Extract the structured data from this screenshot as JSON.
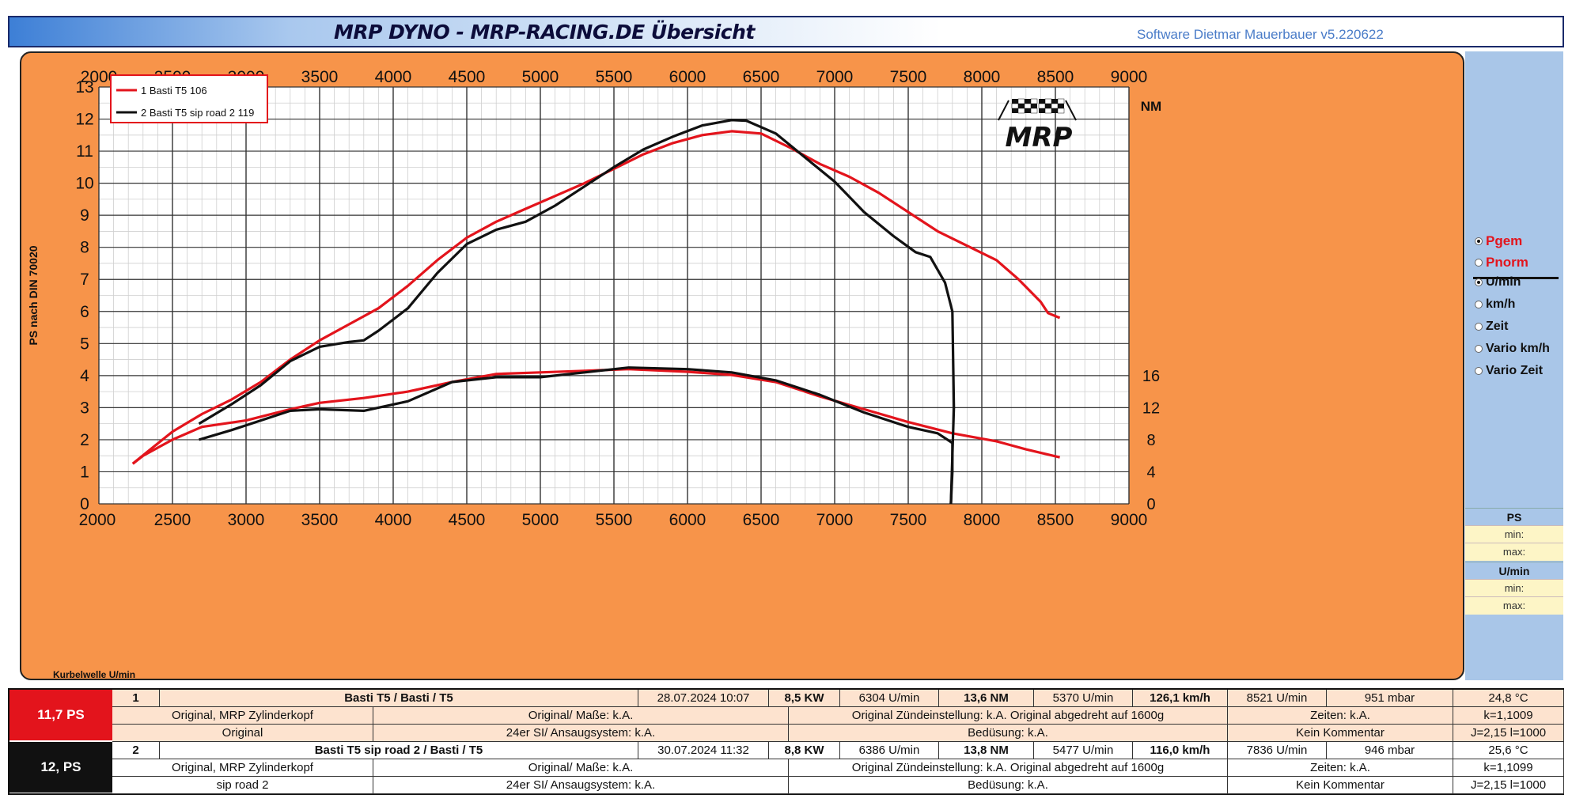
{
  "header": {
    "title": "MRP DYNO - MRP-RACING.DE  Übersicht",
    "software": "Software Dietmar Mauerbauer v5.220622"
  },
  "logo_text": "MRP",
  "chart_data": {
    "type": "line",
    "xlabel": "Kurbelwelle U/min",
    "ylabel": "PS nach DIN 70020",
    "y2label": "NM",
    "xlim": [
      2000,
      9000
    ],
    "ylim": [
      0,
      13
    ],
    "y2lim": [
      0,
      16
    ],
    "x_ticks": [
      "2000",
      "2500",
      "3000",
      "3500",
      "4000",
      "4500",
      "5000",
      "5500",
      "6000",
      "6500",
      "7000",
      "7500",
      "8000",
      "8500",
      "9000"
    ],
    "y_ticks": [
      "0",
      "1",
      "2",
      "3",
      "4",
      "5",
      "6",
      "7",
      "8",
      "9",
      "10",
      "11",
      "12",
      "13"
    ],
    "y2_ticks": [
      "0",
      "4",
      "8",
      "12",
      "16"
    ],
    "grid": true,
    "legend_position": "top-left",
    "series": [
      {
        "name": "1  Basti T5 106",
        "color": "#e3141c",
        "power_ps": [
          [
            2230,
            1.25
          ],
          [
            2350,
            1.7
          ],
          [
            2500,
            2.25
          ],
          [
            2700,
            2.8
          ],
          [
            2900,
            3.25
          ],
          [
            3100,
            3.8
          ],
          [
            3300,
            4.5
          ],
          [
            3500,
            5.1
          ],
          [
            3700,
            5.6
          ],
          [
            3900,
            6.1
          ],
          [
            4100,
            6.8
          ],
          [
            4300,
            7.6
          ],
          [
            4500,
            8.3
          ],
          [
            4700,
            8.8
          ],
          [
            4900,
            9.2
          ],
          [
            5100,
            9.6
          ],
          [
            5300,
            10.0
          ],
          [
            5500,
            10.45
          ],
          [
            5700,
            10.9
          ],
          [
            5900,
            11.25
          ],
          [
            6100,
            11.5
          ],
          [
            6300,
            11.62
          ],
          [
            6500,
            11.55
          ],
          [
            6700,
            11.1
          ],
          [
            6900,
            10.6
          ],
          [
            7100,
            10.2
          ],
          [
            7300,
            9.7
          ],
          [
            7500,
            9.1
          ],
          [
            7700,
            8.5
          ],
          [
            7900,
            8.05
          ],
          [
            8100,
            7.6
          ],
          [
            8250,
            7.0
          ],
          [
            8400,
            6.3
          ],
          [
            8450,
            5.95
          ],
          [
            8530,
            5.8
          ]
        ],
        "torque_nm": [
          [
            2230,
            1.25
          ],
          [
            2300,
            1.5
          ],
          [
            2500,
            2.0
          ],
          [
            2700,
            2.4
          ],
          [
            3000,
            2.6
          ],
          [
            3300,
            2.95
          ],
          [
            3500,
            3.15
          ],
          [
            3800,
            3.3
          ],
          [
            4100,
            3.5
          ],
          [
            4400,
            3.8
          ],
          [
            4700,
            4.05
          ],
          [
            5000,
            4.1
          ],
          [
            5300,
            4.15
          ],
          [
            5600,
            4.2
          ],
          [
            6000,
            4.12
          ],
          [
            6300,
            4.02
          ],
          [
            6600,
            3.8
          ],
          [
            6900,
            3.35
          ],
          [
            7200,
            2.95
          ],
          [
            7500,
            2.55
          ],
          [
            7800,
            2.2
          ],
          [
            8100,
            1.95
          ],
          [
            8300,
            1.7
          ],
          [
            8530,
            1.45
          ]
        ]
      },
      {
        "name": "2  Basti T5 sip road 2 119",
        "color": "#111111",
        "power_ps": [
          [
            2680,
            2.5
          ],
          [
            2900,
            3.1
          ],
          [
            3100,
            3.7
          ],
          [
            3300,
            4.45
          ],
          [
            3500,
            4.9
          ],
          [
            3700,
            5.05
          ],
          [
            3800,
            5.1
          ],
          [
            3900,
            5.4
          ],
          [
            4100,
            6.1
          ],
          [
            4300,
            7.2
          ],
          [
            4500,
            8.1
          ],
          [
            4700,
            8.55
          ],
          [
            4900,
            8.8
          ],
          [
            5100,
            9.3
          ],
          [
            5300,
            9.9
          ],
          [
            5500,
            10.5
          ],
          [
            5700,
            11.05
          ],
          [
            5900,
            11.45
          ],
          [
            6100,
            11.8
          ],
          [
            6300,
            11.97
          ],
          [
            6400,
            11.95
          ],
          [
            6600,
            11.55
          ],
          [
            6800,
            10.8
          ],
          [
            7000,
            10.05
          ],
          [
            7200,
            9.1
          ],
          [
            7400,
            8.35
          ],
          [
            7550,
            7.85
          ],
          [
            7650,
            7.7
          ],
          [
            7750,
            6.9
          ],
          [
            7800,
            6.0
          ],
          [
            7810,
            3.0
          ],
          [
            7790,
            0
          ]
        ],
        "torque_nm": [
          [
            2680,
            2.0
          ],
          [
            2900,
            2.3
          ],
          [
            3100,
            2.6
          ],
          [
            3300,
            2.9
          ],
          [
            3500,
            2.95
          ],
          [
            3800,
            2.9
          ],
          [
            4100,
            3.2
          ],
          [
            4400,
            3.8
          ],
          [
            4700,
            3.95
          ],
          [
            5000,
            3.95
          ],
          [
            5300,
            4.1
          ],
          [
            5600,
            4.25
          ],
          [
            6000,
            4.2
          ],
          [
            6300,
            4.1
          ],
          [
            6600,
            3.85
          ],
          [
            6900,
            3.4
          ],
          [
            7200,
            2.85
          ],
          [
            7500,
            2.4
          ],
          [
            7700,
            2.2
          ],
          [
            7800,
            1.9
          ],
          [
            7800,
            1.0
          ],
          [
            7790,
            0
          ]
        ]
      }
    ]
  },
  "side_panel": {
    "options_red": [
      {
        "label": "Pgem",
        "checked": true
      },
      {
        "label": "Pnorm",
        "checked": false
      }
    ],
    "options": [
      {
        "label": "U/min",
        "checked": true
      },
      {
        "label": "km/h",
        "checked": false
      },
      {
        "label": "Zeit",
        "checked": false
      },
      {
        "label": "Vario km/h",
        "checked": false
      },
      {
        "label": "Vario Zeit",
        "checked": false
      }
    ],
    "ps_head": "PS",
    "umin_head": "U/min",
    "min_label": "min:",
    "max_label": "max:"
  },
  "results": [
    {
      "badge": "11,7  PS",
      "badge_color": "#e3141c",
      "row1": [
        "1",
        "Basti T5 / Basti / T5",
        "28.07.2024 10:07",
        "8,5  KW",
        "6304  U/min",
        "13,6  NM",
        "5370  U/min",
        "126,1 km/h",
        "8521  U/min",
        "951  mbar",
        "24,8 °C"
      ],
      "row2": [
        "Original, MRP Zylinderkopf",
        "Original/ Maße: k.A.",
        "Original  Zündeinstellung: k.A. Original abgedreht auf 1600g",
        "Zeiten: k.A.",
        "k=1,1009"
      ],
      "row3": [
        "Original",
        "24er SI/ Ansaugsystem: k.A.",
        "Bedüsung: k.A.",
        "Kein Kommentar",
        "J=2,15 l=1000"
      ]
    },
    {
      "badge": "12,  PS",
      "badge_color": "#111111",
      "row1": [
        "2",
        "Basti T5 sip road 2 / Basti / T5",
        "30.07.2024 11:32",
        "8,8  KW",
        "6386  U/min",
        "13,8  NM",
        "5477  U/min",
        "116,0 km/h",
        "7836  U/min",
        "946  mbar",
        "25,6 °C"
      ],
      "row2": [
        "Original, MRP Zylinderkopf",
        "Original/ Maße: k.A.",
        "Original  Zündeinstellung: k.A. Original abgedreht auf 1600g",
        "Zeiten: k.A.",
        "k=1,1099"
      ],
      "row3": [
        "sip road 2",
        "24er SI/ Ansaugsystem: k.A.",
        "Bedüsung: k.A.",
        "Kein Kommentar",
        "J=2,15 l=1000"
      ]
    }
  ]
}
